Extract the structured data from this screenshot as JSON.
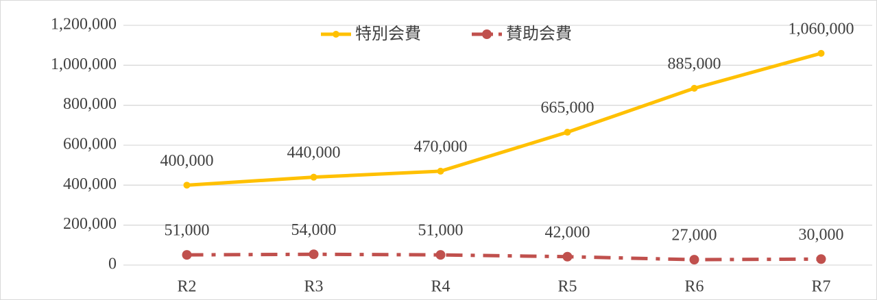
{
  "chart_data": {
    "type": "line",
    "categories": [
      "R2",
      "R3",
      "R4",
      "R5",
      "R6",
      "R7"
    ],
    "series": [
      {
        "name": "特別会費",
        "color": "#FFC000",
        "dash": "solid",
        "values": [
          400000,
          440000,
          470000,
          665000,
          885000,
          1060000
        ],
        "value_labels": [
          "400,000",
          "440,000",
          "470,000",
          "665,000",
          "885,000",
          "1,060,000"
        ]
      },
      {
        "name": "賛助会費",
        "color": "#C0504D",
        "dash": "dashdot",
        "values": [
          51000,
          54000,
          51000,
          42000,
          27000,
          30000
        ],
        "value_labels": [
          "51,000",
          "54,000",
          "51,000",
          "42,000",
          "27,000",
          "30,000"
        ]
      }
    ],
    "ylim": [
      0,
      1200000
    ],
    "yticks": [
      0,
      {
        "value": 200000,
        "label": "200,000"
      },
      {
        "value": 400000,
        "label": "400,000"
      },
      {
        "value": 600000,
        "label": "600,000"
      },
      {
        "value": 800000,
        "label": "800,000"
      },
      {
        "value": 1000000,
        "label": "1,000,000"
      },
      {
        "value": 1200000,
        "label": "1,200,000"
      }
    ],
    "grid": true,
    "legend": "top"
  }
}
